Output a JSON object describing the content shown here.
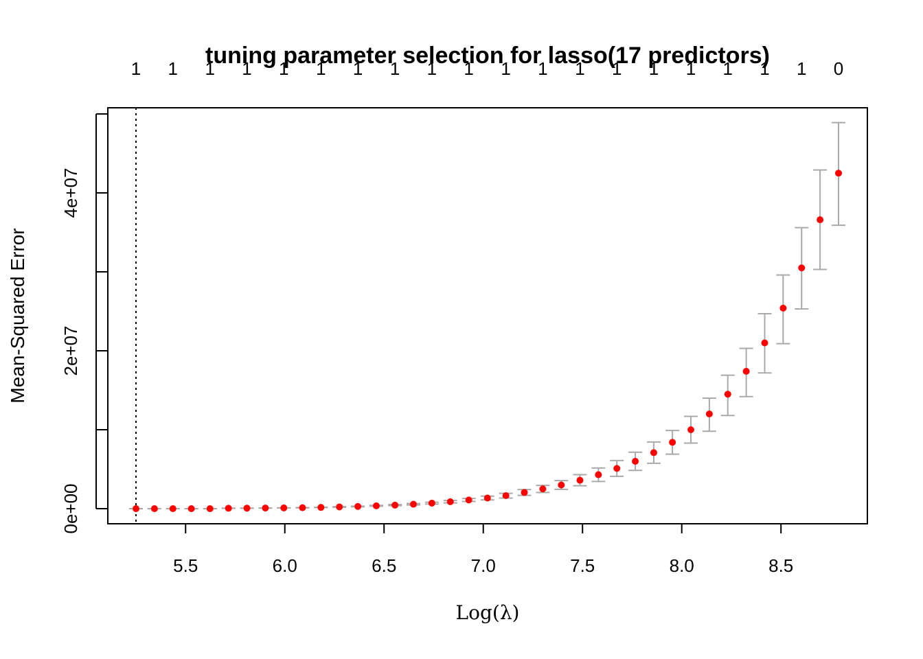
{
  "chart_data": {
    "type": "scatter",
    "title": "tuning parameter selection for lasso(17 predictors)",
    "xlabel": "Log(λ)",
    "ylabel": "Mean-Squared Error",
    "xlim": [
      5.25,
      8.79
    ],
    "ylim": [
      -1000000,
      50000000
    ],
    "x_ticks": [
      5.5,
      6.0,
      6.5,
      7.0,
      7.5,
      8.0,
      8.5
    ],
    "x_tick_labels": [
      "5.5",
      "6.0",
      "6.5",
      "7.0",
      "7.5",
      "8.0",
      "8.5"
    ],
    "y_ticks": [
      0,
      10000000,
      20000000,
      30000000,
      40000000,
      50000000
    ],
    "y_tick_labels": [
      "0e+00",
      "",
      "2e+07",
      "",
      "4e+07",
      ""
    ],
    "top_axis_counts": [
      "1",
      "1",
      "1",
      "1",
      "1",
      "1",
      "1",
      "1",
      "1",
      "1",
      "1",
      "1",
      "1",
      "1",
      "1",
      "1",
      "1",
      "1",
      "1",
      "0"
    ],
    "vline_x": 5.25,
    "colors": {
      "points": "#ff0000",
      "errorbars": "#a9a9a9",
      "axes": "#000000"
    },
    "series": [
      {
        "x": [
          5.25,
          5.343,
          5.436,
          5.529,
          5.623,
          5.716,
          5.809,
          5.902,
          5.995,
          6.089,
          6.182,
          6.275,
          6.368,
          6.461,
          6.555,
          6.648,
          6.741,
          6.834,
          6.927,
          7.021,
          7.114,
          7.207,
          7.3,
          7.393,
          7.487,
          7.58,
          7.673,
          7.766,
          7.859,
          7.953,
          8.046,
          8.139,
          8.232,
          8.325,
          8.418,
          8.511,
          8.604,
          8.697,
          8.79
        ],
        "y": [
          0,
          0,
          0,
          0,
          0,
          50000,
          60000,
          80000,
          100000,
          120000,
          160000,
          220000,
          280000,
          360000,
          450000,
          560000,
          700000,
          880000,
          1100000,
          1350000,
          1650000,
          2050000,
          2500000,
          3000000,
          3600000,
          4300000,
          5100000,
          6000000,
          7100000,
          8400000,
          10000000,
          12000000,
          14500000,
          17400000,
          21000000,
          25400000,
          30500000,
          36600000,
          42500000
        ],
        "err_low": [
          0,
          0,
          0,
          0,
          0,
          40000,
          50000,
          70000,
          90000,
          100000,
          140000,
          190000,
          240000,
          310000,
          380000,
          470000,
          580000,
          730000,
          910000,
          1110000,
          1350000,
          1680000,
          2050000,
          2450000,
          2900000,
          3450000,
          4100000,
          4850000,
          5750000,
          6900000,
          8300000,
          9800000,
          11800000,
          14200000,
          17200000,
          20900000,
          25300000,
          30300000,
          35900000
        ],
        "err_high": [
          0,
          0,
          0,
          0,
          0,
          60000,
          70000,
          90000,
          110000,
          140000,
          180000,
          250000,
          320000,
          410000,
          520000,
          650000,
          820000,
          1030000,
          1290000,
          1590000,
          1950000,
          2420000,
          2950000,
          3550000,
          4300000,
          5150000,
          6100000,
          7150000,
          8450000,
          9900000,
          11700000,
          14000000,
          16900000,
          20300000,
          24700000,
          29600000,
          35600000,
          42900000,
          48900000
        ]
      }
    ]
  }
}
